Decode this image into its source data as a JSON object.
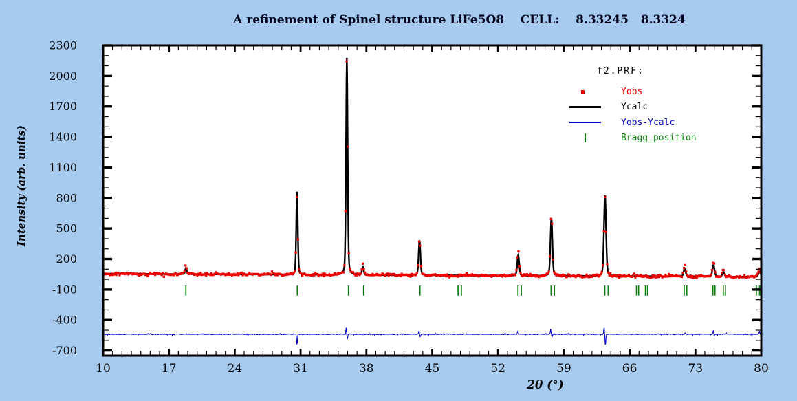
{
  "title": "A refinement of Spinel structure LiFe5O8    CELL:    8.33245   8.3324",
  "colors": {
    "page_bg": "#a7caef",
    "plot_bg": "#ffffff",
    "axis": "#000000",
    "yobs": "#ee0000",
    "ycalc": "#000000",
    "diff": "#0000cc",
    "bragg": "#0a7d0a"
  },
  "chart_data": {
    "type": "scatter+line (Rietveld refinement powder diffraction pattern)",
    "title": "A refinement of Spinel structure LiFe5O8    CELL:    8.33245   8.3324",
    "xlabel": "2θ (°)",
    "ylabel": "Intensity (arb. units)",
    "xlim": [
      10,
      80
    ],
    "ylim": [
      -750,
      2300
    ],
    "x_major_ticks": [
      10,
      17,
      24,
      31,
      38,
      45,
      52,
      59,
      66,
      73,
      80
    ],
    "x_minor_step": 1,
    "y_major_ticks": [
      2300,
      2000,
      1700,
      1400,
      1100,
      800,
      500,
      200,
      -100,
      -400,
      -700
    ],
    "y_minor_step": 100,
    "grid": false,
    "legend": {
      "header": "f2.PRF:",
      "position": "upper-right",
      "entries": [
        {
          "label": "Yobs",
          "color": "#ee0000",
          "marker": "square"
        },
        {
          "label": "Ycalc",
          "color": "#000000",
          "marker": "thick-line"
        },
        {
          "label": "Yobs-Ycalc",
          "color": "#0000cc",
          "marker": "thin-line"
        },
        {
          "label": "Bragg_position",
          "color": "#0a7d0a",
          "marker": "vbar"
        }
      ]
    },
    "background_level": {
      "start": 55,
      "end": 25
    },
    "peaks": [
      {
        "two_theta": 18.8,
        "ycalc_height": 60,
        "yobs_peak": 115,
        "yobs_delta": 20,
        "width": 0.1
      },
      {
        "two_theta": 30.62,
        "ycalc_height": 835,
        "yobs_peak": 780,
        "yobs_delta": -60,
        "width": 0.095
      },
      {
        "two_theta": 35.92,
        "ycalc_height": 2135,
        "yobs_peak": 2240,
        "yobs_delta": 70,
        "width": 0.1
      },
      {
        "two_theta": 37.62,
        "ycalc_height": 80,
        "yobs_peak": 130,
        "yobs_delta": 25,
        "width": 0.1
      },
      {
        "two_theta": 43.65,
        "ycalc_height": 345,
        "yobs_peak": 425,
        "yobs_delta": 45,
        "width": 0.11
      },
      {
        "two_theta": 54.15,
        "ycalc_height": 205,
        "yobs_peak": 290,
        "yobs_delta": 50,
        "width": 0.12
      },
      {
        "two_theta": 57.68,
        "ycalc_height": 570,
        "yobs_peak": 670,
        "yobs_delta": 60,
        "width": 0.12
      },
      {
        "two_theta": 63.38,
        "ycalc_height": 800,
        "yobs_peak": 810,
        "yobs_delta": -20,
        "width": 0.13
      },
      {
        "two_theta": 71.85,
        "ycalc_height": 75,
        "yobs_peak": 130,
        "yobs_delta": 30,
        "width": 0.13
      },
      {
        "two_theta": 74.92,
        "ycalc_height": 115,
        "yobs_peak": 200,
        "yobs_delta": 45,
        "width": 0.13
      },
      {
        "two_theta": 75.97,
        "ycalc_height": 45,
        "yobs_peak": 100,
        "yobs_delta": 25,
        "width": 0.12
      },
      {
        "two_theta": 79.82,
        "ycalc_height": 55,
        "yobs_peak": 115,
        "yobs_delta": 25,
        "width": 0.13
      }
    ],
    "bragg_positions": [
      18.8,
      30.65,
      36.09,
      37.7,
      43.7,
      47.75,
      48.1,
      54.12,
      54.48,
      57.65,
      58.0,
      63.36,
      63.72,
      66.73,
      66.95,
      67.68,
      67.9,
      71.8,
      72.08,
      74.86,
      75.08,
      75.96,
      76.18,
      79.48,
      79.82
    ],
    "bragg_tick_y": [
      -60,
      -160
    ],
    "diff_baseline": -540,
    "diff_spikes": [
      {
        "x": 30.62,
        "amp": -110
      },
      {
        "x": 35.85,
        "amp": 60
      },
      {
        "x": 35.97,
        "amp": -55
      },
      {
        "x": 43.6,
        "amp": 35
      },
      {
        "x": 43.72,
        "amp": -30
      },
      {
        "x": 54.1,
        "amp": 38
      },
      {
        "x": 57.6,
        "amp": 48
      },
      {
        "x": 57.75,
        "amp": -28
      },
      {
        "x": 63.28,
        "amp": 70
      },
      {
        "x": 63.42,
        "amp": -115
      },
      {
        "x": 71.9,
        "amp": 18
      },
      {
        "x": 74.9,
        "amp": 40
      },
      {
        "x": 74.99,
        "amp": -22
      },
      {
        "x": 79.8,
        "amp": 28
      }
    ],
    "noise": {
      "yobs_amplitude": 14,
      "diff_amplitude": 6
    }
  }
}
